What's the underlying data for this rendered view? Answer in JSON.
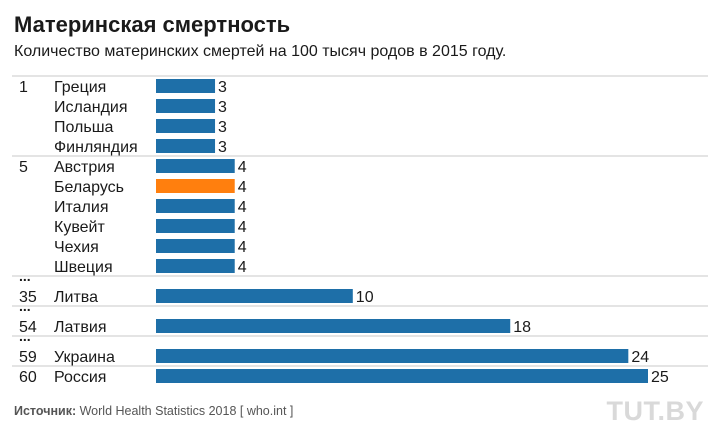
{
  "title": "Материнская смертность",
  "subtitle": "Количество материнских смертей на 100 тысяч родов в 2015 году.",
  "source_label": "Источник:",
  "source_text": " World Health Statistics 2018 [ who.int ]",
  "logo": "TUT.BY",
  "ellipsis": "...",
  "colors": {
    "default_bar": "#1e6fa8",
    "highlight_bar": "#ff7f0e",
    "separator": "#c8c8c8"
  },
  "chart_data": {
    "type": "bar",
    "orientation": "horizontal",
    "title": "Материнская смертность",
    "subtitle": "Количество материнских смертей на 100 тысяч родов в 2015 году.",
    "xlim": [
      0,
      25
    ],
    "rows": [
      {
        "rank": "1",
        "country": "Греция",
        "value": 3,
        "highlight": false,
        "gap_before": false
      },
      {
        "rank": "",
        "country": "Исландия",
        "value": 3,
        "highlight": false,
        "gap_before": false
      },
      {
        "rank": "",
        "country": "Польша",
        "value": 3,
        "highlight": false,
        "gap_before": false
      },
      {
        "rank": "",
        "country": "Финляндия",
        "value": 3,
        "highlight": false,
        "gap_before": false
      },
      {
        "rank": "5",
        "country": "Австрия",
        "value": 4,
        "highlight": false,
        "gap_before": false
      },
      {
        "rank": "",
        "country": "Беларусь",
        "value": 4,
        "highlight": true,
        "gap_before": false
      },
      {
        "rank": "",
        "country": "Италия",
        "value": 4,
        "highlight": false,
        "gap_before": false
      },
      {
        "rank": "",
        "country": "Кувейт",
        "value": 4,
        "highlight": false,
        "gap_before": false
      },
      {
        "rank": "",
        "country": "Чехия",
        "value": 4,
        "highlight": false,
        "gap_before": false
      },
      {
        "rank": "",
        "country": "Швеция",
        "value": 4,
        "highlight": false,
        "gap_before": false
      },
      {
        "rank": "35",
        "country": "Литва",
        "value": 10,
        "highlight": false,
        "gap_before": true
      },
      {
        "rank": "54",
        "country": "Латвия",
        "value": 18,
        "highlight": false,
        "gap_before": true
      },
      {
        "rank": "59",
        "country": "Украина",
        "value": 24,
        "highlight": false,
        "gap_before": true
      },
      {
        "rank": "60",
        "country": "Россия",
        "value": 25,
        "highlight": false,
        "gap_before": false
      }
    ]
  }
}
